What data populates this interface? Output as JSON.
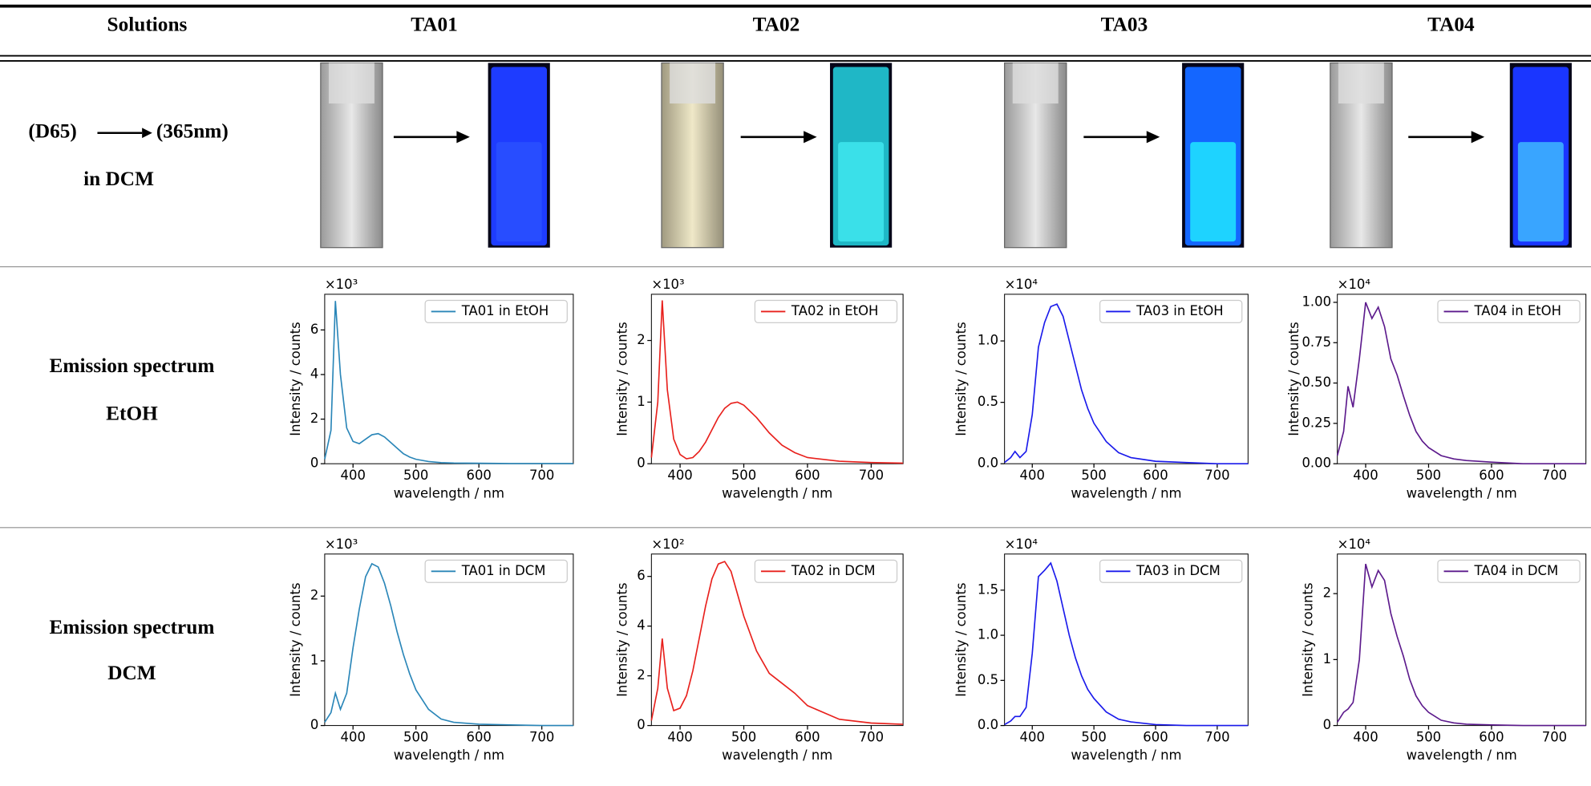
{
  "table": {
    "header": [
      "Solutions",
      "TA01",
      "TA02",
      "TA03",
      "TA04"
    ],
    "rows": [
      {
        "label": [
          "(D65)",
          "(365nm)",
          "in DCM"
        ]
      },
      {
        "label": [
          "Emission spectrum",
          "EtOH"
        ]
      },
      {
        "label": [
          "Emission spectrum",
          "DCM"
        ]
      }
    ]
  },
  "chart_data": [
    {
      "type": "line",
      "xlabel": "wavelength / nm",
      "ylabel": "Intensity / counts",
      "offset_label": "×10³",
      "legend": "upper right",
      "x": [
        355,
        365,
        372,
        380,
        390,
        400,
        410,
        420,
        430,
        440,
        450,
        460,
        470,
        480,
        490,
        500,
        520,
        540,
        560,
        600,
        650,
        700,
        750
      ],
      "series": [
        {
          "name": "TA01 in EtOH",
          "color": "#2a86b8",
          "values": [
            0.2,
            1.5,
            7.3,
            4.0,
            1.6,
            1.0,
            0.9,
            1.1,
            1.3,
            1.35,
            1.2,
            0.95,
            0.7,
            0.45,
            0.3,
            0.2,
            0.1,
            0.05,
            0.03,
            0.02,
            0.01,
            0.01,
            0.01
          ]
        }
      ],
      "xlim": [
        355,
        750
      ],
      "xticks": [
        400,
        500,
        600,
        700
      ],
      "ylim": [
        0,
        7.6
      ],
      "yticks": [
        0,
        2,
        4,
        6
      ]
    },
    {
      "type": "line",
      "xlabel": "wavelength / nm",
      "ylabel": "Intensity / counts",
      "offset_label": "×10³",
      "legend": "upper right",
      "x": [
        355,
        365,
        372,
        380,
        390,
        400,
        410,
        420,
        430,
        440,
        450,
        460,
        470,
        480,
        490,
        500,
        520,
        540,
        560,
        580,
        600,
        650,
        700,
        750
      ],
      "series": [
        {
          "name": "TA02 in EtOH",
          "color": "#e8201c",
          "values": [
            0.1,
            1.0,
            2.65,
            1.2,
            0.4,
            0.15,
            0.08,
            0.1,
            0.2,
            0.35,
            0.55,
            0.75,
            0.9,
            0.98,
            1.0,
            0.95,
            0.75,
            0.5,
            0.3,
            0.18,
            0.1,
            0.04,
            0.02,
            0.01
          ]
        }
      ],
      "xlim": [
        355,
        750
      ],
      "xticks": [
        400,
        500,
        600,
        700
      ],
      "ylim": [
        0,
        2.75
      ],
      "yticks": [
        0,
        1,
        2
      ]
    },
    {
      "type": "line",
      "xlabel": "wavelength / nm",
      "ylabel": "Intensity / counts",
      "offset_label": "×10⁴",
      "legend": "upper right",
      "x": [
        355,
        365,
        372,
        380,
        390,
        400,
        410,
        420,
        430,
        440,
        450,
        460,
        470,
        480,
        490,
        500,
        520,
        540,
        560,
        600,
        650,
        700,
        750
      ],
      "series": [
        {
          "name": "TA03 in EtOH",
          "color": "#1a1aeb",
          "values": [
            0.01,
            0.05,
            0.1,
            0.05,
            0.1,
            0.4,
            0.95,
            1.15,
            1.28,
            1.3,
            1.2,
            1.0,
            0.8,
            0.6,
            0.45,
            0.33,
            0.18,
            0.09,
            0.05,
            0.02,
            0.01,
            0.0,
            0.0
          ]
        }
      ],
      "xlim": [
        355,
        750
      ],
      "xticks": [
        400,
        500,
        600,
        700
      ],
      "ylim": [
        0,
        1.38
      ],
      "yticks": [
        {
          "value": 0,
          "label": "0.0"
        },
        0.5,
        {
          "value": 1,
          "label": "1.0"
        }
      ]
    },
    {
      "type": "line",
      "xlabel": "wavelength / nm",
      "ylabel": "Intensity / counts",
      "offset_label": "×10⁴",
      "legend": "upper right",
      "x": [
        355,
        365,
        372,
        380,
        390,
        400,
        410,
        420,
        430,
        440,
        450,
        460,
        470,
        480,
        490,
        500,
        520,
        540,
        560,
        600,
        650,
        700,
        750
      ],
      "series": [
        {
          "name": "TA04 in EtOH",
          "color": "#5c1a8c",
          "values": [
            0.05,
            0.2,
            0.48,
            0.35,
            0.65,
            1.0,
            0.9,
            0.97,
            0.85,
            0.65,
            0.55,
            0.42,
            0.3,
            0.2,
            0.14,
            0.1,
            0.05,
            0.03,
            0.02,
            0.01,
            0.0,
            0.0,
            0.0
          ]
        }
      ],
      "xlim": [
        355,
        750
      ],
      "xticks": [
        400,
        500,
        600,
        700
      ],
      "ylim": [
        0,
        1.05
      ],
      "yticks": [
        {
          "value": 0,
          "label": "0.00"
        },
        0.25,
        {
          "value": 0.5,
          "label": "0.50"
        },
        0.75,
        {
          "value": 1,
          "label": "1.00"
        }
      ]
    },
    {
      "type": "line",
      "xlabel": "wavelength / nm",
      "ylabel": "Intensity / counts",
      "offset_label": "×10³",
      "legend": "upper right",
      "x": [
        355,
        365,
        372,
        380,
        390,
        400,
        410,
        420,
        430,
        440,
        450,
        460,
        470,
        480,
        490,
        500,
        520,
        540,
        560,
        600,
        650,
        700,
        750
      ],
      "series": [
        {
          "name": "TA01 in DCM",
          "color": "#2a86b8",
          "values": [
            0.05,
            0.2,
            0.5,
            0.25,
            0.5,
            1.2,
            1.8,
            2.3,
            2.5,
            2.45,
            2.2,
            1.85,
            1.45,
            1.1,
            0.8,
            0.55,
            0.25,
            0.1,
            0.05,
            0.02,
            0.01,
            0,
            0
          ]
        }
      ],
      "xlim": [
        355,
        750
      ],
      "xticks": [
        400,
        500,
        600,
        700
      ],
      "ylim": [
        0,
        2.65
      ],
      "yticks": [
        0,
        1,
        2
      ]
    },
    {
      "type": "line",
      "xlabel": "wavelength / nm",
      "ylabel": "Intensity / counts",
      "offset_label": "×10²",
      "legend": "upper right",
      "x": [
        355,
        365,
        372,
        380,
        390,
        400,
        410,
        420,
        430,
        440,
        450,
        460,
        470,
        480,
        490,
        500,
        520,
        540,
        560,
        580,
        600,
        650,
        700,
        750
      ],
      "series": [
        {
          "name": "TA02 in DCM",
          "color": "#e8201c",
          "values": [
            0.2,
            1.5,
            3.5,
            1.5,
            0.6,
            0.7,
            1.2,
            2.2,
            3.5,
            4.8,
            5.9,
            6.5,
            6.6,
            6.2,
            5.3,
            4.4,
            3.0,
            2.1,
            1.7,
            1.3,
            0.8,
            0.25,
            0.1,
            0.05
          ]
        }
      ],
      "xlim": [
        355,
        750
      ],
      "xticks": [
        400,
        500,
        600,
        700
      ],
      "ylim": [
        0,
        6.9
      ],
      "yticks": [
        0,
        2,
        4,
        6
      ]
    },
    {
      "type": "line",
      "xlabel": "wavelength / nm",
      "ylabel": "Intensity / counts",
      "offset_label": "×10⁴",
      "legend": "upper right",
      "x": [
        355,
        365,
        372,
        380,
        390,
        400,
        410,
        420,
        430,
        440,
        450,
        460,
        470,
        480,
        490,
        500,
        520,
        540,
        560,
        600,
        650,
        700,
        750
      ],
      "series": [
        {
          "name": "TA03 in DCM",
          "color": "#1a1aeb",
          "values": [
            0.01,
            0.05,
            0.1,
            0.1,
            0.2,
            0.8,
            1.65,
            1.72,
            1.8,
            1.6,
            1.3,
            1.0,
            0.75,
            0.55,
            0.4,
            0.3,
            0.15,
            0.07,
            0.04,
            0.01,
            0,
            0,
            0
          ]
        }
      ],
      "xlim": [
        355,
        750
      ],
      "xticks": [
        400,
        500,
        600,
        700
      ],
      "ylim": [
        0,
        1.9
      ],
      "yticks": [
        {
          "value": 0,
          "label": "0.0"
        },
        0.5,
        {
          "value": 1,
          "label": "1.0"
        },
        1.5
      ]
    },
    {
      "type": "line",
      "xlabel": "wavelength / nm",
      "ylabel": "Intensity / counts",
      "offset_label": "×10⁴",
      "legend": "upper right",
      "x": [
        355,
        365,
        372,
        380,
        390,
        400,
        410,
        420,
        430,
        440,
        450,
        460,
        470,
        480,
        490,
        500,
        520,
        540,
        560,
        600,
        650,
        700,
        750
      ],
      "series": [
        {
          "name": "TA04 in DCM",
          "color": "#5c1a8c",
          "values": [
            0.05,
            0.2,
            0.25,
            0.35,
            1.0,
            2.45,
            2.1,
            2.35,
            2.2,
            1.7,
            1.35,
            1.05,
            0.7,
            0.45,
            0.3,
            0.2,
            0.08,
            0.04,
            0.02,
            0.01,
            0,
            0,
            0
          ]
        }
      ],
      "xlim": [
        355,
        750
      ],
      "xticks": [
        400,
        500,
        600,
        700
      ],
      "ylim": [
        0,
        2.6
      ],
      "yticks": [
        0,
        1,
        2
      ]
    }
  ]
}
